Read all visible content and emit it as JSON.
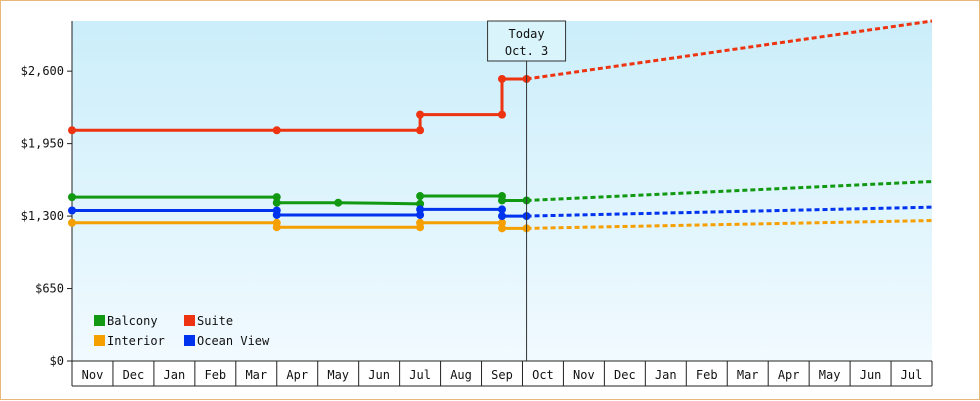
{
  "chart_data": {
    "type": "line",
    "title": "",
    "xlabel": "",
    "ylabel": "",
    "ylim": [
      0,
      3050
    ],
    "y_ticks": [
      {
        "value": 0,
        "label": "$0"
      },
      {
        "value": 650,
        "label": "$650"
      },
      {
        "value": 1300,
        "label": "$1,300"
      },
      {
        "value": 1950,
        "label": "$1,950"
      },
      {
        "value": 2600,
        "label": "$2,600"
      }
    ],
    "x_months": [
      "Nov",
      "Dec",
      "Jan",
      "Feb",
      "Mar",
      "Apr",
      "May",
      "Jun",
      "Jul",
      "Aug",
      "Sep",
      "Oct",
      "Nov",
      "Dec",
      "Jan",
      "Feb",
      "Mar",
      "Apr",
      "May",
      "Jun",
      "Jul"
    ],
    "x_range": [
      0,
      21
    ],
    "today": {
      "line1": "Today",
      "line2": "Oct. 3",
      "x": 11.1
    },
    "grid": false,
    "legend_position": "bottom-left",
    "series": [
      {
        "name": "Balcony",
        "color": "#119911",
        "history": [
          [
            0,
            1470
          ],
          [
            5.0,
            1470
          ],
          [
            5.0,
            1420
          ],
          [
            6.5,
            1420
          ],
          [
            8.5,
            1410
          ],
          [
            8.5,
            1480
          ],
          [
            10.5,
            1480
          ],
          [
            10.5,
            1440
          ],
          [
            11.1,
            1440
          ]
        ],
        "markers": [
          [
            0,
            1470
          ],
          [
            5.0,
            1470
          ],
          [
            5.0,
            1420
          ],
          [
            6.5,
            1420
          ],
          [
            8.5,
            1410
          ],
          [
            8.5,
            1480
          ],
          [
            10.5,
            1480
          ],
          [
            10.5,
            1440
          ],
          [
            11.1,
            1440
          ]
        ],
        "forecast": [
          [
            11.1,
            1440
          ],
          [
            21,
            1610
          ]
        ]
      },
      {
        "name": "Suite",
        "color": "#ee3311",
        "history": [
          [
            0,
            2070
          ],
          [
            5.0,
            2070
          ],
          [
            8.5,
            2070
          ],
          [
            8.5,
            2210
          ],
          [
            10.5,
            2210
          ],
          [
            10.5,
            2530
          ],
          [
            11.1,
            2530
          ]
        ],
        "markers": [
          [
            0,
            2070
          ],
          [
            5.0,
            2070
          ],
          [
            8.5,
            2070
          ],
          [
            8.5,
            2210
          ],
          [
            10.5,
            2210
          ],
          [
            10.5,
            2530
          ],
          [
            11.1,
            2530
          ]
        ],
        "forecast": [
          [
            11.1,
            2530
          ],
          [
            21,
            3050
          ]
        ]
      },
      {
        "name": "Interior",
        "color": "#f5a000",
        "history": [
          [
            0,
            1240
          ],
          [
            5.0,
            1240
          ],
          [
            5.0,
            1200
          ],
          [
            8.5,
            1200
          ],
          [
            8.5,
            1240
          ],
          [
            10.5,
            1240
          ],
          [
            10.5,
            1190
          ],
          [
            11.1,
            1190
          ]
        ],
        "markers": [
          [
            0,
            1240
          ],
          [
            5.0,
            1240
          ],
          [
            5.0,
            1200
          ],
          [
            8.5,
            1200
          ],
          [
            8.5,
            1240
          ],
          [
            10.5,
            1240
          ],
          [
            10.5,
            1190
          ],
          [
            11.1,
            1190
          ]
        ],
        "forecast": [
          [
            11.1,
            1190
          ],
          [
            21,
            1260
          ]
        ]
      },
      {
        "name": "Ocean View",
        "color": "#0033ee",
        "history": [
          [
            0,
            1350
          ],
          [
            5.0,
            1350
          ],
          [
            5.0,
            1310
          ],
          [
            8.5,
            1310
          ],
          [
            8.5,
            1360
          ],
          [
            10.5,
            1360
          ],
          [
            10.5,
            1300
          ],
          [
            11.1,
            1300
          ]
        ],
        "markers": [
          [
            0,
            1350
          ],
          [
            5.0,
            1350
          ],
          [
            5.0,
            1310
          ],
          [
            8.5,
            1310
          ],
          [
            8.5,
            1360
          ],
          [
            10.5,
            1360
          ],
          [
            10.5,
            1300
          ],
          [
            11.1,
            1300
          ]
        ],
        "forecast": [
          [
            11.1,
            1300
          ],
          [
            21,
            1380
          ]
        ]
      }
    ]
  }
}
